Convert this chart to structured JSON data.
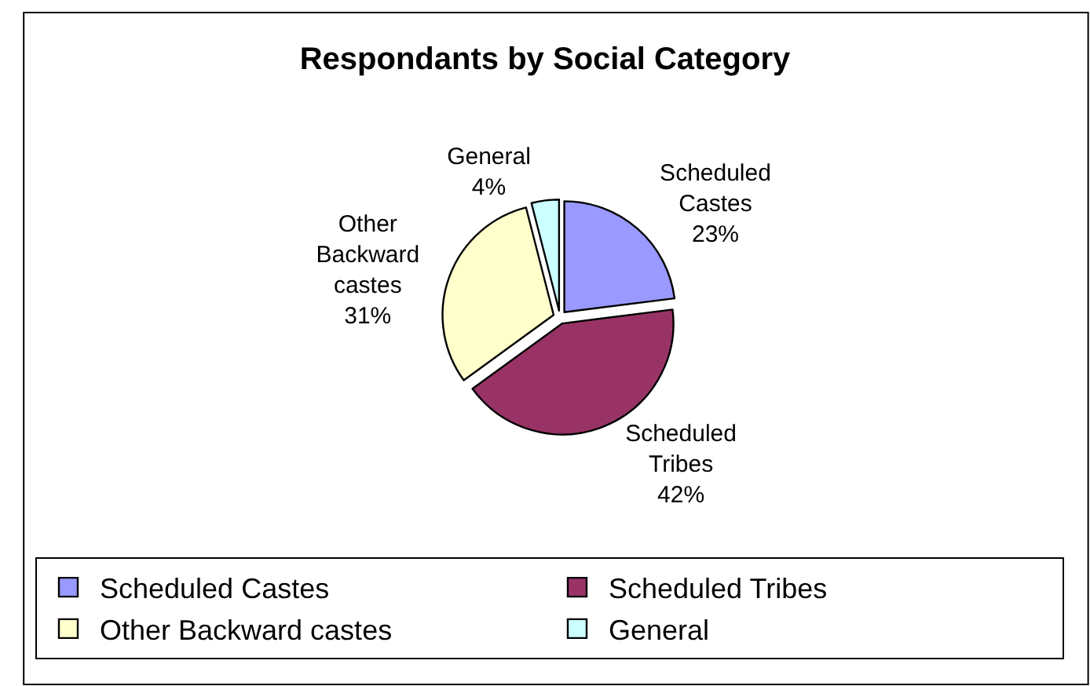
{
  "chart_data": {
    "type": "pie",
    "title": "Respondants by Social Category",
    "categories": [
      "Scheduled Castes",
      "Scheduled Tribes",
      "Other Backward castes",
      "General"
    ],
    "values": [
      23,
      42,
      31,
      4
    ],
    "colors": [
      "#9999ff",
      "#993366",
      "#ffffcc",
      "#ccffff"
    ],
    "value_labels": [
      "23%",
      "42%",
      "31%",
      "4%"
    ],
    "legend": "bottom"
  }
}
